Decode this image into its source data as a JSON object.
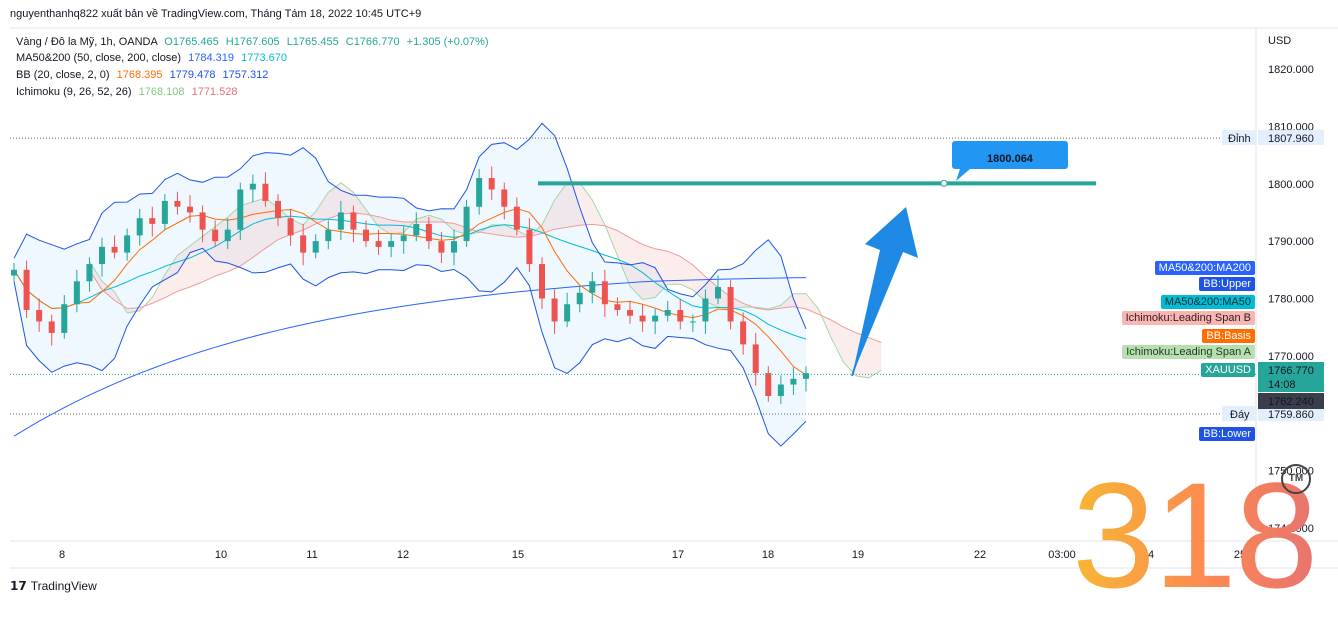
{
  "header": {
    "published": "nguyenthanhq822 xuất bản về TradingView.com, Tháng Tám 18, 2022 10:45 UTC+9"
  },
  "legend": {
    "symbol": "Vàng / Đô la Mỹ, 1h, OANDA",
    "o": "O1765.465",
    "h": "H1767.605",
    "l": "L1765.455",
    "c": "C1766.770",
    "change": "+1.305 (+0.07%)",
    "ma_label": "MA50&200 (50, close, 200, close)",
    "ma_v1": "1784.319",
    "ma_v2": "1773.670",
    "bb_label": "BB (20, close, 2, 0)",
    "bb_v1": "1768.395",
    "bb_v2": "1779.478",
    "bb_v3": "1757.312",
    "ichi_label": "Ichimoku (9, 26, 52, 26)",
    "ichi_v1": "1768.108",
    "ichi_v2": "1771.528"
  },
  "axis": {
    "currency": "USD",
    "top_label": "Đỉnh",
    "top_value": "1807.960",
    "bottom_label": "Đáy",
    "bottom_value": "1759.860"
  },
  "tags": {
    "ma200": "MA50&200:MA200",
    "bbupper": "BB:Upper",
    "ma50": "MA50&200:MA50",
    "spanb": "Ichimoku:Leading Span B",
    "bbbasis": "BB:Basis",
    "spana": "Ichimoku:Leading Span A",
    "xau": "XAUUSD",
    "price": "1766.770",
    "countdown": "14:08",
    "price2": "1762.240",
    "bblower": "BB:Lower"
  },
  "annotation": {
    "target": "1800.064"
  },
  "watermark": {
    "number": "318",
    "tm": "TM"
  },
  "footer": {
    "brand": "TradingView"
  },
  "colors": {
    "up": "#26a69a",
    "down": "#ef5350",
    "ma200": "#2962ff",
    "ma50": "#00bcd4",
    "bb": "#1e53e5",
    "basis": "#ff6d00",
    "target": "#26a69a"
  },
  "chart_data": {
    "type": "candlestick",
    "symbol": "XAUUSD",
    "ylim": [
      1735,
      1825
    ],
    "y_ticks": [
      1820,
      1810,
      1800,
      1790,
      1780,
      1770,
      1760,
      1750,
      1740
    ],
    "y_tick_labels": [
      "1820.000",
      "1810.000",
      "1800.000",
      "1790.000",
      "1780.000",
      "1770.000",
      "1760.000",
      "1750.000",
      "1740.000"
    ],
    "x_tick_labels": [
      "8",
      "10",
      "11",
      "12",
      "15",
      "17",
      "18",
      "19",
      "22",
      "03:00",
      "24",
      "25"
    ],
    "close_path": [
      1785,
      1778,
      1776,
      1774,
      1779,
      1783,
      1786,
      1789,
      1788,
      1791,
      1794,
      1793,
      1797,
      1796,
      1795,
      1792,
      1790,
      1792,
      1799,
      1800,
      1797,
      1794,
      1791,
      1788,
      1790,
      1792,
      1795,
      1792,
      1790,
      1789,
      1790,
      1791,
      1793,
      1790,
      1788,
      1790,
      1796,
      1801,
      1799,
      1796,
      1792,
      1786,
      1780,
      1776,
      1779,
      1781,
      1783,
      1779,
      1778,
      1777,
      1776,
      1777,
      1778,
      1776,
      1776,
      1780,
      1782,
      1776,
      1772,
      1767,
      1763,
      1765,
      1766,
      1767
    ],
    "levels": {
      "top": 1807.96,
      "bottom": 1759.86,
      "last": 1766.77,
      "target": 1800.064
    },
    "indicators": [
      "MA50",
      "MA200",
      "BB Upper",
      "BB Basis",
      "BB Lower",
      "Ichimoku Leading Span A",
      "Ichimoku Leading Span B"
    ]
  }
}
